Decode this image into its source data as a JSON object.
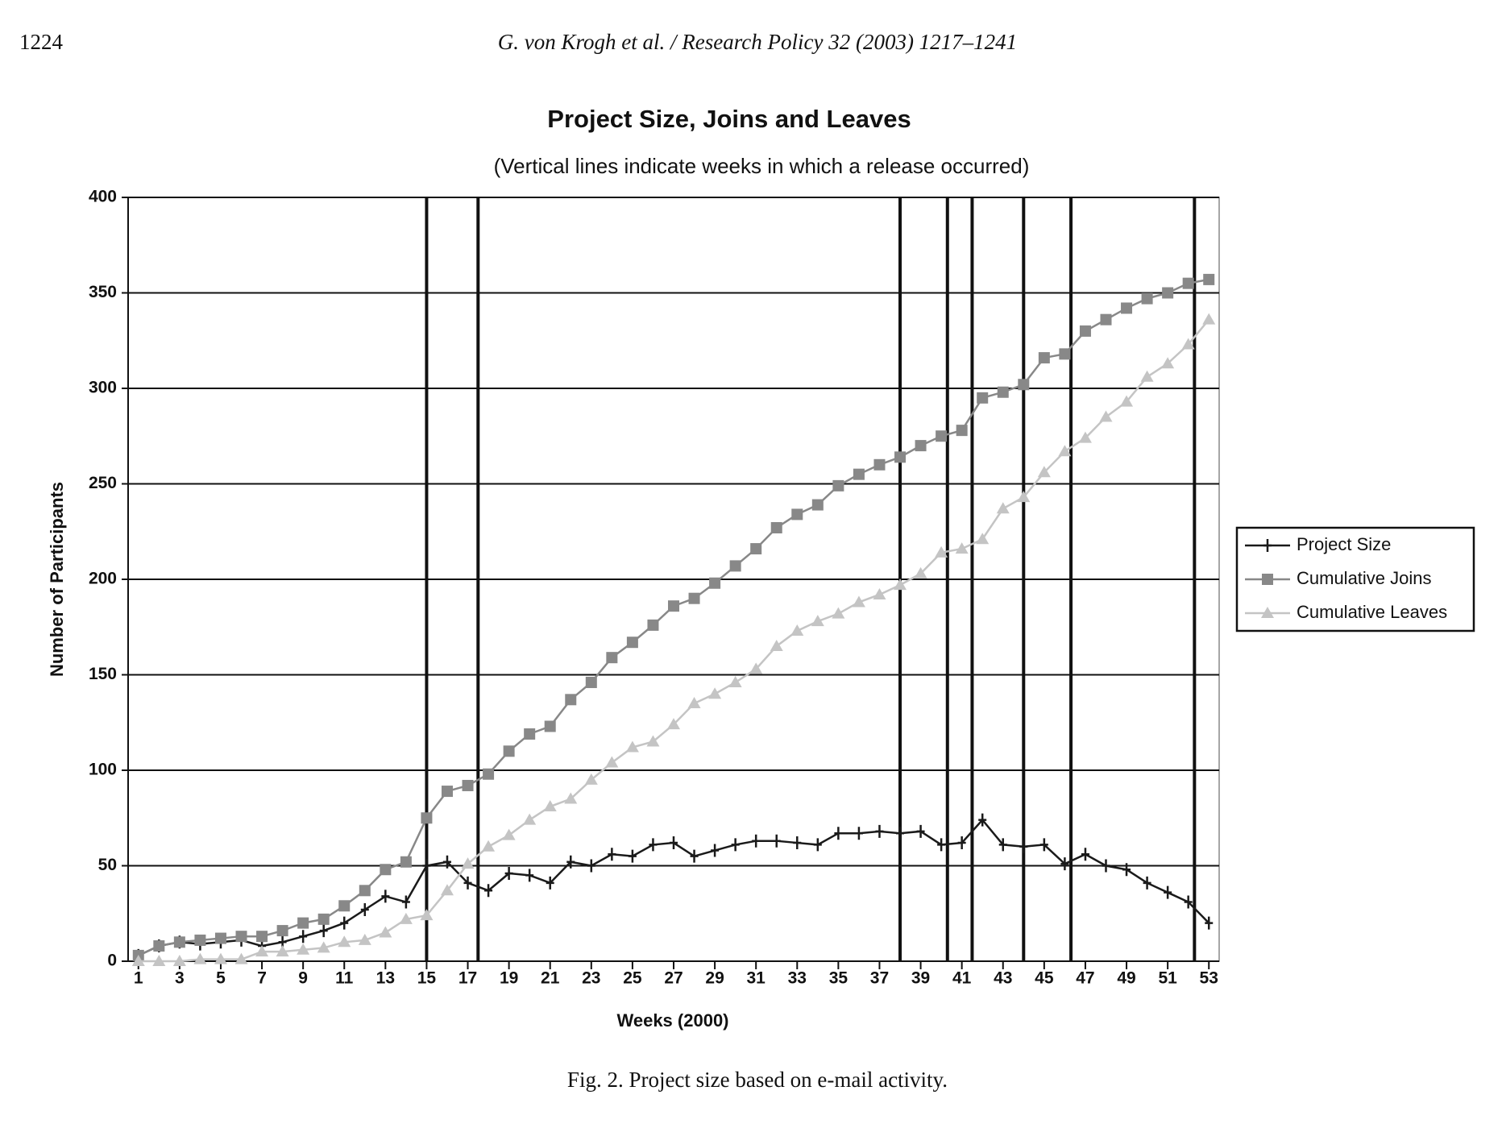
{
  "page_number": "1224",
  "running_head": "G. von Krogh et al. / Research Policy 32 (2003) 1217–1241",
  "caption": "Fig. 2. Project size based on e-mail activity.",
  "chart_data": {
    "type": "line",
    "title": "Project Size, Joins and Leaves",
    "subtitle": "(Vertical lines indicate weeks in which a release occurred)",
    "x_label": "Weeks (2000)",
    "y_label": "Number of Participants",
    "x": [
      1,
      2,
      3,
      4,
      5,
      6,
      7,
      8,
      9,
      10,
      11,
      12,
      13,
      14,
      15,
      16,
      17,
      18,
      19,
      20,
      21,
      22,
      23,
      24,
      25,
      26,
      27,
      28,
      29,
      30,
      31,
      32,
      33,
      34,
      35,
      36,
      37,
      38,
      39,
      40,
      41,
      42,
      43,
      44,
      45,
      46,
      47,
      48,
      49,
      50,
      51,
      52,
      53
    ],
    "xlim": [
      0.5,
      53.5
    ],
    "xticks": [
      1,
      3,
      5,
      7,
      9,
      11,
      13,
      15,
      17,
      19,
      21,
      23,
      25,
      27,
      29,
      31,
      33,
      35,
      37,
      39,
      41,
      43,
      45,
      47,
      49,
      51,
      53
    ],
    "ylim": [
      0,
      400
    ],
    "yticks": [
      0,
      50,
      100,
      150,
      200,
      250,
      300,
      350,
      400
    ],
    "grid": true,
    "legend": "right",
    "release_weeks": [
      15,
      17.5,
      38,
      40.3,
      41.5,
      44,
      46.3,
      52.3
    ],
    "series": [
      {
        "name": "Project Size",
        "color": "#1a1a1a",
        "marker": "plus",
        "values": [
          3,
          8,
          10,
          9,
          10,
          11,
          8,
          10,
          13,
          16,
          20,
          27,
          34,
          31,
          50,
          52,
          41,
          37,
          46,
          45,
          41,
          52,
          50,
          56,
          55,
          61,
          62,
          55,
          58,
          61,
          63,
          63,
          62,
          61,
          67,
          67,
          68,
          67,
          68,
          61,
          62,
          74,
          61,
          60,
          61,
          51,
          56,
          50,
          48,
          41,
          36,
          31,
          20
        ]
      },
      {
        "name": "Cumulative Joins",
        "color": "#888888",
        "marker": "square",
        "values": [
          3,
          8,
          10,
          11,
          12,
          13,
          13,
          16,
          20,
          22,
          29,
          37,
          48,
          52,
          75,
          89,
          92,
          98,
          110,
          119,
          123,
          137,
          146,
          159,
          167,
          176,
          186,
          190,
          198,
          207,
          216,
          227,
          234,
          239,
          249,
          255,
          260,
          264,
          270,
          275,
          278,
          295,
          298,
          302,
          316,
          318,
          330,
          336,
          342,
          347,
          350,
          355,
          357
        ]
      },
      {
        "name": "Cumulative Leaves",
        "color": "#c4c4c4",
        "marker": "triangle",
        "values": [
          0,
          0,
          0,
          1,
          1,
          1,
          5,
          5,
          6,
          7,
          10,
          11,
          15,
          22,
          24,
          37,
          51,
          60,
          66,
          74,
          81,
          85,
          95,
          104,
          112,
          115,
          124,
          135,
          140,
          146,
          153,
          165,
          173,
          178,
          182,
          188,
          192,
          197,
          203,
          214,
          216,
          221,
          237,
          243,
          256,
          267,
          274,
          285,
          293,
          306,
          313,
          323,
          336
        ]
      }
    ]
  }
}
